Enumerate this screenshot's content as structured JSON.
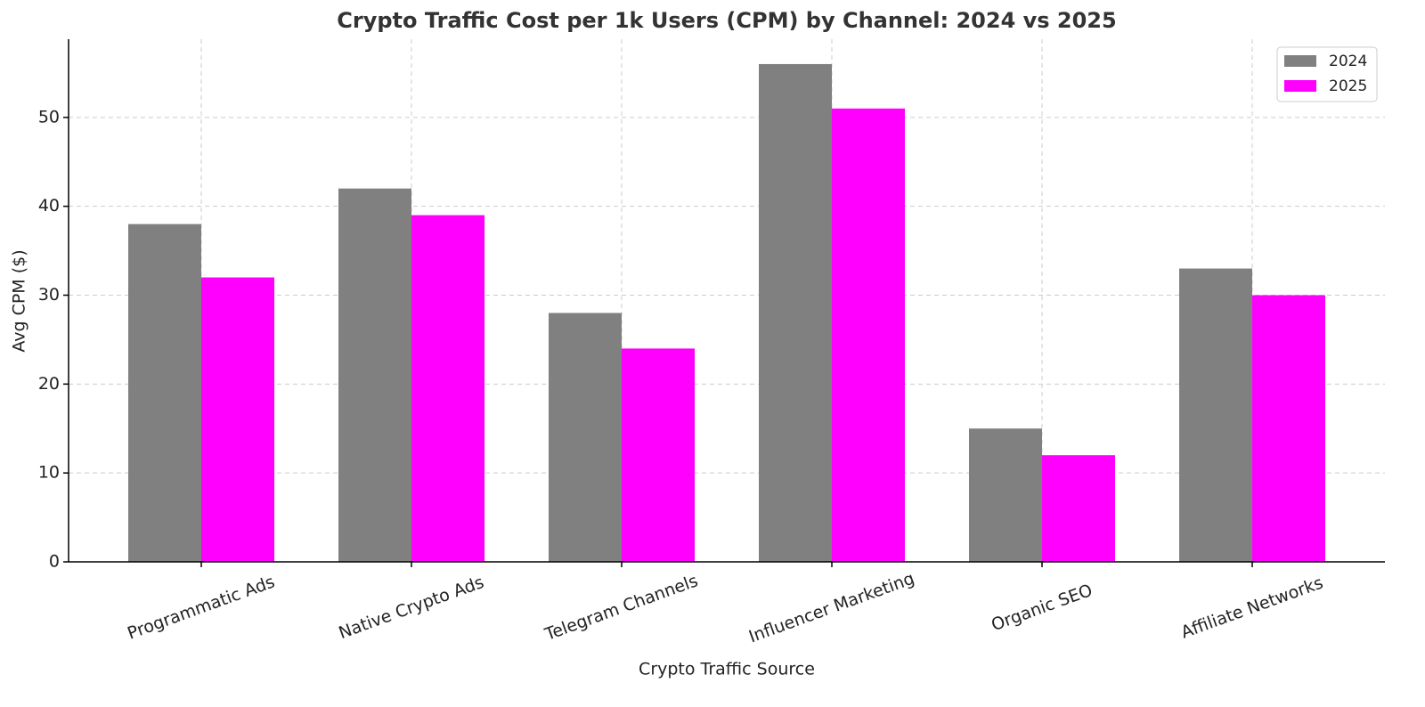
{
  "chart_data": {
    "type": "bar",
    "title": "Crypto Traffic Cost per 1k Users (CPM) by Channel: 2024 vs 2025",
    "x_label": "Crypto Traffic Source",
    "y_label": "Avg CPM ($)",
    "categories": [
      "Programmatic Ads",
      "Native Crypto Ads",
      "Telegram Channels",
      "Influencer Marketing",
      "Organic SEO",
      "Affiliate Networks"
    ],
    "series": [
      {
        "name": "2024",
        "color": "#808080",
        "values": [
          38,
          42,
          28,
          56,
          15,
          33
        ]
      },
      {
        "name": "2025",
        "color": "#ff00ff",
        "values": [
          32,
          39,
          24,
          51,
          12,
          30
        ]
      }
    ],
    "ylim": [
      0,
      58.8
    ],
    "yticks": [
      0,
      10,
      20,
      30,
      40,
      50
    ],
    "grid": true,
    "legend": "upper-right"
  }
}
